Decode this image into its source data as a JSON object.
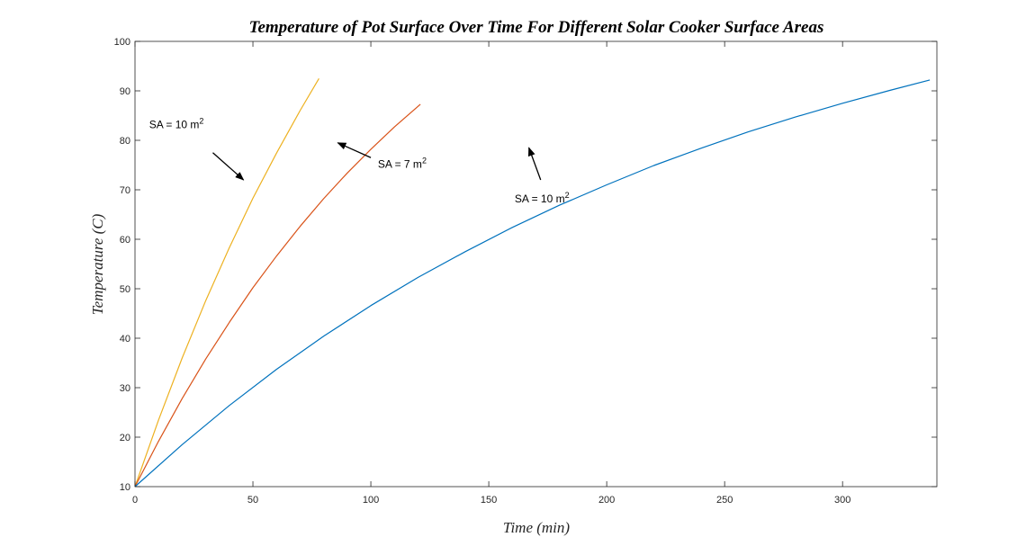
{
  "chart_data": {
    "type": "line",
    "title": "Temperature of Pot Surface Over Time For Different Solar Cooker Surface Areas",
    "xlabel": "Time (min)",
    "ylabel": "Temperature (C)",
    "xlim": [
      0,
      340
    ],
    "ylim": [
      10,
      100
    ],
    "xticks": [
      0,
      50,
      100,
      150,
      200,
      250,
      300
    ],
    "yticks": [
      10,
      20,
      30,
      40,
      50,
      60,
      70,
      80,
      90,
      100
    ],
    "grid": false,
    "series": [
      {
        "color": "#EDB120",
        "x": [
          0,
          10,
          20,
          30,
          40,
          50,
          60,
          70,
          78
        ],
        "y": [
          10,
          23.5,
          36.0,
          47.6,
          58.3,
          68.3,
          77.4,
          86.0,
          92.5
        ]
      },
      {
        "color": "#D95319",
        "x": [
          0,
          10,
          20,
          30,
          40,
          50,
          60,
          70,
          80,
          90,
          100,
          110,
          121
        ],
        "y": [
          10,
          19.2,
          27.8,
          35.8,
          43.2,
          50.2,
          56.6,
          62.6,
          68.2,
          73.4,
          78.2,
          82.7,
          87.3
        ]
      },
      {
        "color": "#0072BD",
        "x": [
          0,
          20,
          40,
          60,
          80,
          100,
          120,
          140,
          160,
          180,
          200,
          220,
          240,
          260,
          280,
          300,
          320,
          337
        ],
        "y": [
          10,
          18.5,
          26.4,
          33.7,
          40.4,
          46.6,
          52.3,
          57.5,
          62.4,
          66.9,
          71.0,
          74.9,
          78.4,
          81.7,
          84.7,
          87.5,
          90.1,
          92.2
        ]
      }
    ],
    "annotations": [
      {
        "text": "SA = 10 m",
        "sup": "2",
        "text_x": 6,
        "text_y": 82.5,
        "arrow_from": [
          33,
          77.5
        ],
        "arrow_to": [
          46,
          72
        ]
      },
      {
        "text": "SA = 7 m",
        "sup": "2",
        "text_x": 103,
        "text_y": 74.5,
        "arrow_from": [
          100,
          76.5
        ],
        "arrow_to": [
          86,
          79.5
        ]
      },
      {
        "text": "SA = 10 m",
        "sup": "2",
        "text_x": 161,
        "text_y": 67.5,
        "arrow_from": [
          172,
          72
        ],
        "arrow_to": [
          167,
          78.5
        ]
      }
    ]
  }
}
